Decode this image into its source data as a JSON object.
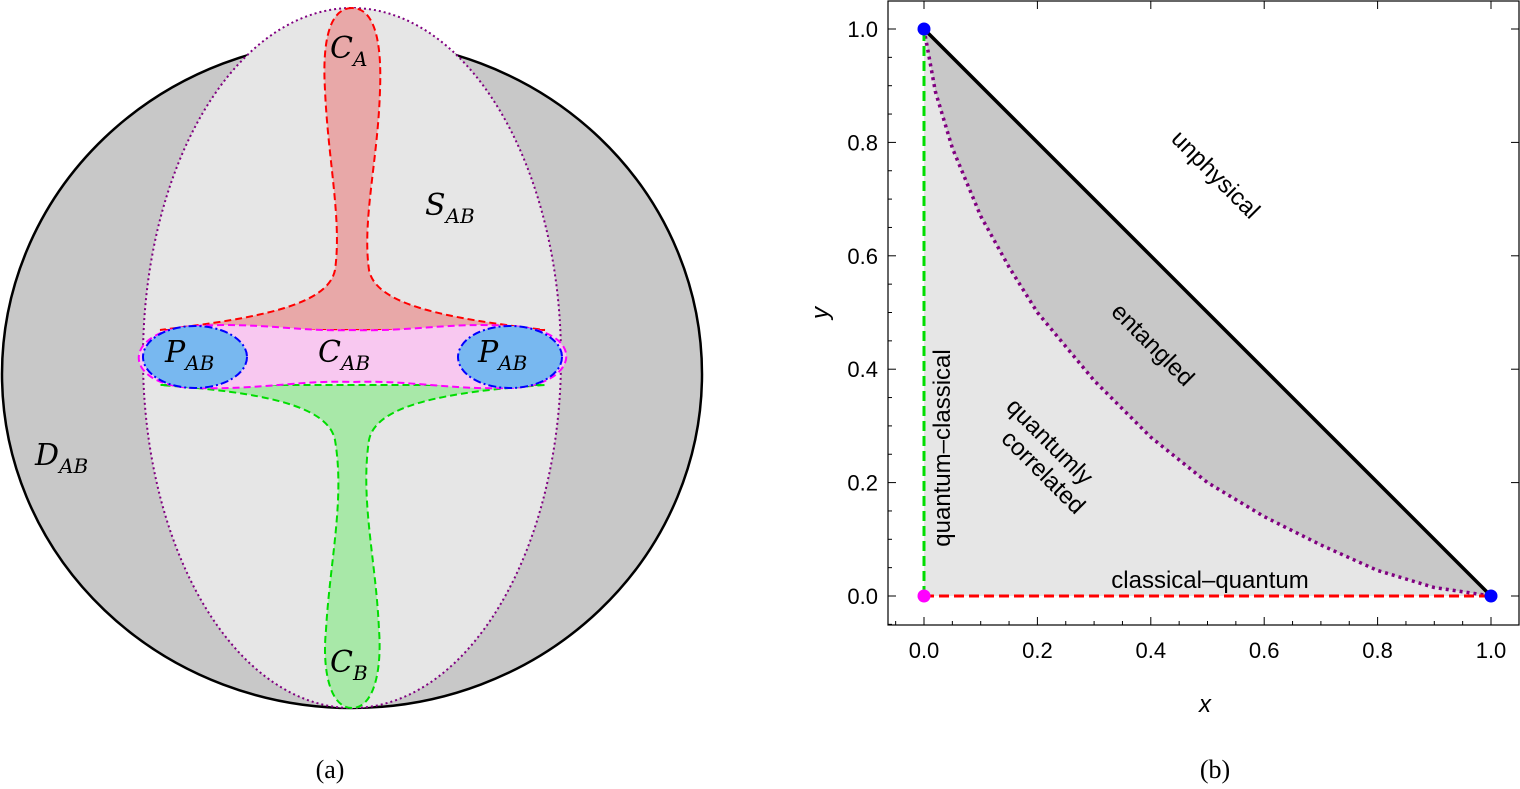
{
  "panel_a": {
    "caption": "(a)",
    "labels": {
      "C_A": {
        "main": "C",
        "sub": "A"
      },
      "C_B": {
        "main": "C",
        "sub": "B"
      },
      "S_AB": {
        "main": "S",
        "sub": "AB"
      },
      "D_AB": {
        "main": "D",
        "sub": "AB"
      },
      "C_AB": {
        "main": "C",
        "sub": "AB"
      },
      "P_AB_left": {
        "main": "P",
        "sub": "AB"
      },
      "P_AB_right": {
        "main": "P",
        "sub": "AB"
      }
    },
    "colors": {
      "outer": "#c8c8c8",
      "inner": "#e6e6e6",
      "red": "#e8a8a8",
      "green": "#a8e8a8",
      "pink": "#f8c8f0",
      "blue": "#78b8f0"
    }
  },
  "chart_data": {
    "type": "line",
    "caption": "(b)",
    "xlabel": "x",
    "ylabel": "y",
    "xlim": [
      -0.06,
      1.05
    ],
    "ylim": [
      -0.05,
      1.05
    ],
    "xticks": [
      "0.0",
      "0.2",
      "0.4",
      "0.6",
      "0.8",
      "1.0"
    ],
    "yticks": [
      "0.0",
      "0.2",
      "0.4",
      "0.6",
      "0.8",
      "1.0"
    ],
    "series": [
      {
        "name": "physical boundary",
        "style": "solid",
        "color": "#000000",
        "points": [
          [
            0,
            1
          ],
          [
            1,
            0
          ]
        ]
      },
      {
        "name": "entanglement boundary",
        "style": "dotted",
        "color": "#800080",
        "points": [
          [
            0,
            1
          ],
          [
            0.02,
            0.89
          ],
          [
            0.05,
            0.79
          ],
          [
            0.1,
            0.67
          ],
          [
            0.15,
            0.58
          ],
          [
            0.2,
            0.5
          ],
          [
            0.3,
            0.38
          ],
          [
            0.4,
            0.28
          ],
          [
            0.5,
            0.2
          ],
          [
            0.6,
            0.14
          ],
          [
            0.7,
            0.09
          ],
          [
            0.8,
            0.045
          ],
          [
            0.9,
            0.015
          ],
          [
            1,
            0
          ]
        ]
      },
      {
        "name": "quantum-classical",
        "style": "dashed",
        "color": "#00dd00",
        "points": [
          [
            0,
            0
          ],
          [
            0,
            1
          ]
        ]
      },
      {
        "name": "classical-quantum",
        "style": "dashed",
        "color": "#ff0000",
        "points": [
          [
            0,
            0
          ],
          [
            1,
            0
          ]
        ]
      }
    ],
    "markers": [
      {
        "x": 0,
        "y": 1,
        "color": "#0000ff"
      },
      {
        "x": 1,
        "y": 0,
        "color": "#0000ff"
      },
      {
        "x": 0,
        "y": 0,
        "color": "#ff00ff"
      }
    ],
    "annotations": {
      "unphysical": "unphysical",
      "entangled": "entangled",
      "quantumly": "quantumly",
      "correlated": "correlated",
      "quantum_classical": "quantum–classical",
      "classical_quantum": "classical–quantum"
    }
  }
}
